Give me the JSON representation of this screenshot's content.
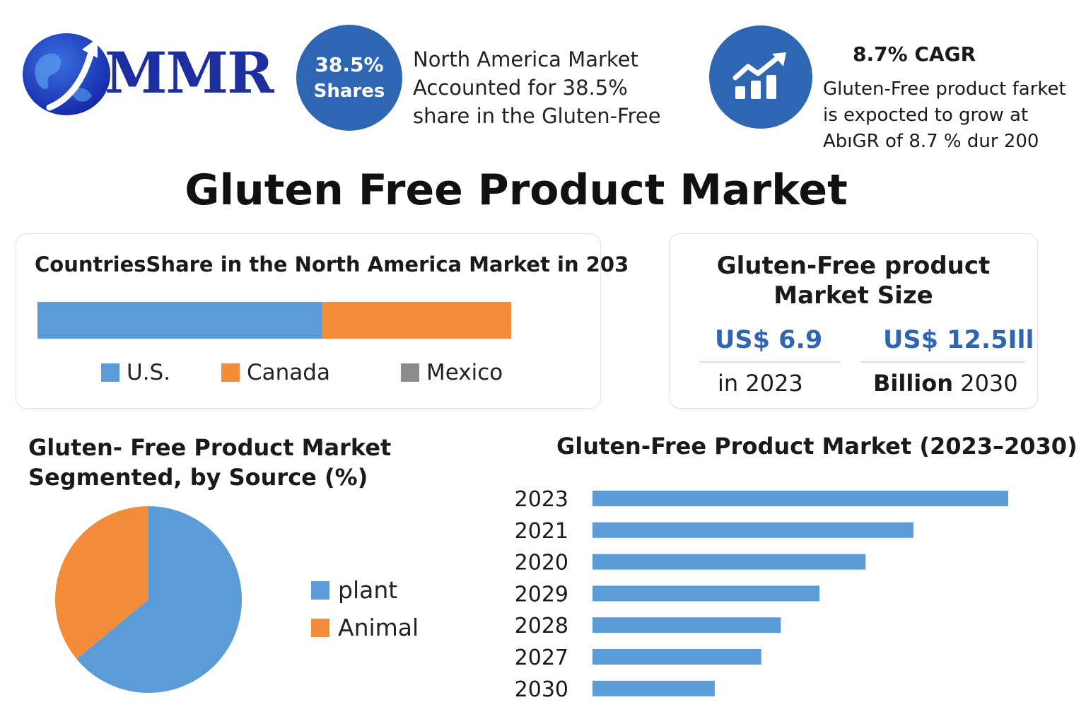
{
  "brand": {
    "name": "MMR"
  },
  "colors": {
    "accent": "#2f66b3",
    "series_blue": "#5b9bd8",
    "series_orange": "#f28c3a",
    "series_gray": "#8c8c8c",
    "logo_blue": "#1d2f9e"
  },
  "share_stat": {
    "value": "38.5%",
    "label": "Shares",
    "text": "North America Market Accounted for 38.5% share in the Gluten-Free"
  },
  "cagr_stat": {
    "icon": "growth-chart-icon",
    "title": "8.7% CAGR",
    "text": "Gluten-Free product farket is expocted to grow at AbıGR of 8.7 % dur 200"
  },
  "page": {
    "title": "Gluten Free Product Market"
  },
  "market_size": {
    "title_line1": "Gluten-Free product",
    "title_line2": "Market Size",
    "value_2023": "US$ 6.9",
    "label_2023": "in 2023",
    "value_2030": "US$ 12.5Ill",
    "label_2030_bold": "Billion",
    "label_2030_year": "2030"
  },
  "chart_data": [
    {
      "type": "bar",
      "orientation": "horizontal-stacked",
      "title": "CountriesShare in the North America Market in 203",
      "series": [
        {
          "name": "U.S.",
          "value": 60,
          "color": "#5b9bd8"
        },
        {
          "name": "Canada",
          "value": 40,
          "color": "#f28c3a"
        },
        {
          "name": "Mexico",
          "value": 0,
          "color": "#8c8c8c"
        }
      ],
      "legend": "bottom"
    },
    {
      "type": "pie",
      "title_line1": "Gluten- Free Product Market",
      "title_line2": "Segmented, by Source (%)",
      "slices": [
        {
          "name": "plant",
          "value": 64,
          "color": "#5b9bd8"
        },
        {
          "name": "Animal",
          "value": 36,
          "color": "#f28c3a"
        }
      ],
      "legend": "right"
    },
    {
      "type": "bar",
      "orientation": "horizontal",
      "title": "Gluten-Free Product Market (2023–2030)",
      "categories": [
        "2023",
        "2021",
        "2020",
        "2029",
        "2028",
        "2027",
        "2030"
      ],
      "values": [
        100,
        77.2,
        65.7,
        54.6,
        45.3,
        40.6,
        29.4
      ],
      "color": "#5b9bd8",
      "grid": false
    }
  ]
}
